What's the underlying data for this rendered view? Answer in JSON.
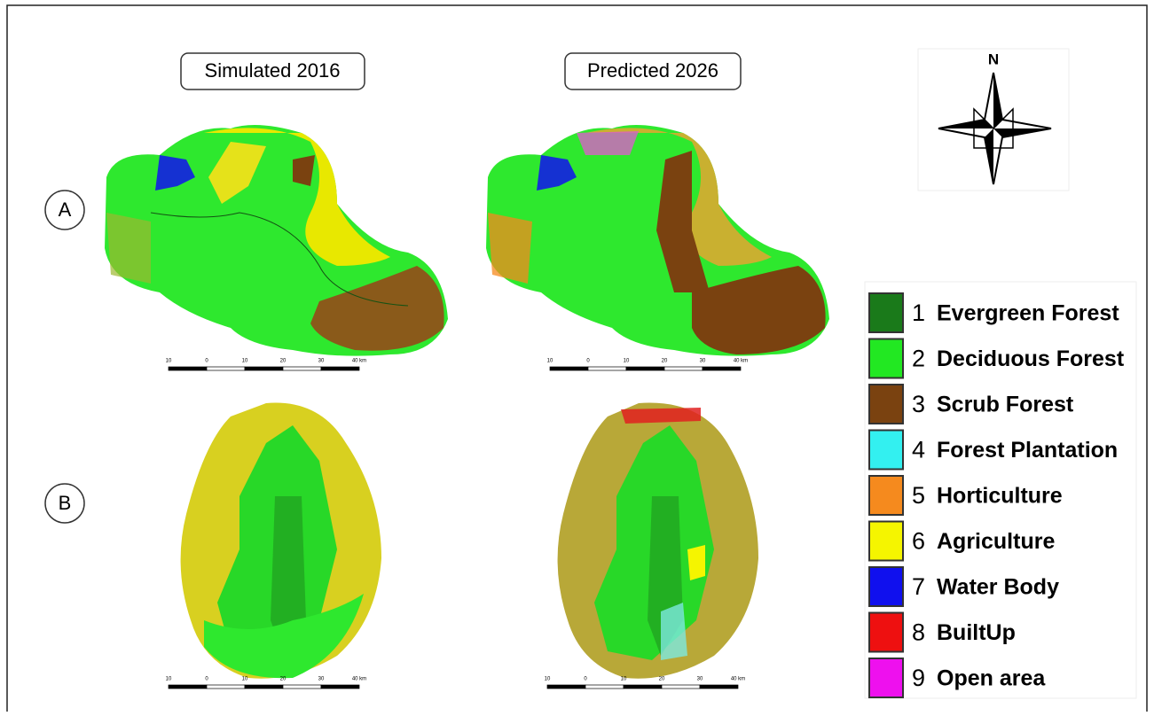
{
  "panels": {
    "columns": [
      "Simulated 2016",
      "Predicted 2026"
    ],
    "rows": [
      "A",
      "B"
    ]
  },
  "compass": {
    "label": "N"
  },
  "scale_bar": {
    "labels": [
      "10",
      "0",
      "10",
      "20",
      "30",
      "40 km"
    ]
  },
  "legend": {
    "items": [
      {
        "number": "1",
        "label": "Evergreen Forest",
        "color": "#1a7a1a"
      },
      {
        "number": "2",
        "label": "Deciduous Forest",
        "color": "#22e822"
      },
      {
        "number": "3",
        "label": "Scrub Forest",
        "color": "#7a4210"
      },
      {
        "number": "4",
        "label": "Forest Plantation",
        "color": "#33f0f0"
      },
      {
        "number": "5",
        "label": "Horticulture",
        "color": "#f58a1e"
      },
      {
        "number": "6",
        "label": "Agriculture",
        "color": "#f5f500"
      },
      {
        "number": "7",
        "label": "Water Body",
        "color": "#1010ee"
      },
      {
        "number": "8",
        "label": "BuiltUp",
        "color": "#ee1010"
      },
      {
        "number": "9",
        "label": "Open area",
        "color": "#ee10ee"
      }
    ]
  }
}
